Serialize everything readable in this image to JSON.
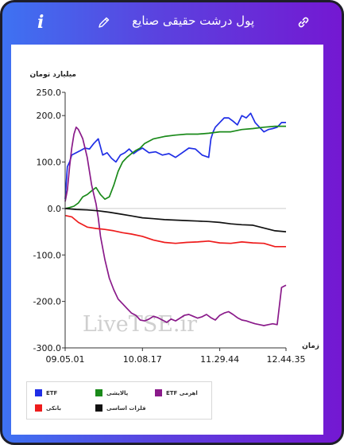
{
  "header": {
    "title": "پول درشت حقیقی صنایع",
    "info_label": "i"
  },
  "colors": {
    "header_gradient": [
      "#3e72f2",
      "#7418d2"
    ],
    "etf": "#1f2ee6",
    "fixed_income": "#1a8a1a",
    "leveraged_etf": "#8a1a8a",
    "banking": "#ee1c1c",
    "base_metals": "#111111"
  },
  "watermark": "LiveTSE.ir",
  "chart_data": {
    "type": "line",
    "ylabel": "میلیارد تومان",
    "xlabel": "زمان",
    "ylim": [
      -300,
      250
    ],
    "yticks": [
      "250.0",
      "200.0",
      "100.0",
      "0.0",
      "-100.0",
      "-200.0",
      "-300.0"
    ],
    "ytick_values": [
      250,
      200,
      100,
      0,
      -100,
      -200,
      -300
    ],
    "xlim": [
      0,
      100
    ],
    "xtick_labels": [
      "09.05.01",
      "10.08.17",
      "11.29.44",
      "12.44.35"
    ],
    "xtick_positions": [
      0,
      35,
      70,
      100
    ],
    "grid": false,
    "legend_position": "bottom-left",
    "series": [
      {
        "name": "ETF",
        "color": "#1f2ee6",
        "x": [
          0,
          1,
          2,
          3,
          5,
          7,
          9,
          11,
          13,
          15,
          17,
          19,
          21,
          23,
          25,
          27,
          29,
          31,
          33,
          35,
          38,
          41,
          44,
          47,
          50,
          53,
          56,
          59,
          62,
          65,
          66,
          67,
          68,
          70,
          72,
          74,
          76,
          78,
          80,
          82,
          84,
          86,
          88,
          90,
          92,
          94,
          96,
          98,
          100
        ],
        "y": [
          20,
          90,
          100,
          115,
          120,
          125,
          130,
          128,
          140,
          150,
          115,
          120,
          108,
          100,
          115,
          120,
          128,
          118,
          125,
          130,
          120,
          122,
          115,
          118,
          110,
          120,
          130,
          128,
          115,
          110,
          150,
          165,
          175,
          185,
          195,
          195,
          188,
          180,
          200,
          195,
          205,
          185,
          175,
          165,
          170,
          172,
          175,
          185,
          185
        ]
      },
      {
        "name": "پالایشی",
        "color": "#1a8a1a",
        "x": [
          0,
          2,
          4,
          6,
          8,
          10,
          12,
          14,
          16,
          18,
          20,
          22,
          24,
          26,
          28,
          30,
          32,
          34,
          36,
          40,
          45,
          50,
          55,
          60,
          65,
          70,
          75,
          80,
          85,
          90,
          95,
          100
        ],
        "y": [
          0,
          2,
          5,
          12,
          25,
          30,
          38,
          45,
          30,
          20,
          25,
          50,
          80,
          100,
          110,
          118,
          125,
          130,
          140,
          150,
          155,
          158,
          160,
          160,
          162,
          165,
          165,
          170,
          172,
          175,
          177,
          177
        ]
      },
      {
        "name": "ETF اهرمی",
        "color": "#8a1a8a",
        "x": [
          0,
          1,
          2,
          3,
          4,
          5,
          6,
          7,
          8,
          9,
          10,
          11,
          12,
          13,
          14,
          15,
          16,
          18,
          20,
          22,
          24,
          26,
          28,
          30,
          32,
          34,
          36,
          38,
          40,
          42,
          44,
          46,
          48,
          50,
          52,
          54,
          56,
          58,
          60,
          62,
          64,
          66,
          68,
          70,
          72,
          74,
          76,
          78,
          80,
          82,
          84,
          86,
          88,
          90,
          92,
          94,
          96,
          98,
          100
        ],
        "y": [
          15,
          40,
          90,
          130,
          160,
          175,
          170,
          160,
          150,
          130,
          110,
          80,
          50,
          30,
          10,
          -20,
          -60,
          -110,
          -150,
          -175,
          -195,
          -205,
          -215,
          -225,
          -230,
          -240,
          -242,
          -238,
          -232,
          -235,
          -240,
          -245,
          -238,
          -242,
          -236,
          -230,
          -228,
          -232,
          -236,
          -233,
          -228,
          -235,
          -240,
          -230,
          -225,
          -222,
          -228,
          -235,
          -240,
          -242,
          -245,
          -248,
          -250,
          -252,
          -250,
          -248,
          -250,
          -170,
          -165
        ]
      },
      {
        "name": "بانکی",
        "color": "#ee1c1c",
        "x": [
          0,
          3,
          6,
          10,
          14,
          18,
          22,
          26,
          30,
          35,
          40,
          45,
          50,
          55,
          60,
          65,
          70,
          75,
          80,
          85,
          90,
          95,
          100
        ],
        "y": [
          -15,
          -18,
          -30,
          -40,
          -43,
          -45,
          -48,
          -52,
          -55,
          -60,
          -68,
          -73,
          -75,
          -73,
          -72,
          -70,
          -74,
          -75,
          -72,
          -74,
          -75,
          -82,
          -82
        ]
      },
      {
        "name": "فلزات اساسی",
        "color": "#111111",
        "x": [
          0,
          5,
          10,
          15,
          20,
          25,
          30,
          35,
          40,
          45,
          50,
          55,
          60,
          65,
          70,
          75,
          80,
          85,
          90,
          95,
          100
        ],
        "y": [
          0,
          -2,
          -3,
          -5,
          -8,
          -12,
          -16,
          -20,
          -22,
          -24,
          -25,
          -26,
          -27,
          -28,
          -30,
          -33,
          -35,
          -36,
          -42,
          -48,
          -50
        ]
      }
    ]
  }
}
